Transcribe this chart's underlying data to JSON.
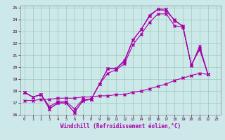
{
  "xlabel": "Windchill (Refroidissement éolien,°C)",
  "bg_color": "#cce8e8",
  "grid_color": "#99ccbb",
  "line_color": "#aa00aa",
  "xlim": [
    -0.5,
    23.5
  ],
  "ylim": [
    16,
    25.2
  ],
  "l1x": [
    0,
    1,
    2,
    3,
    4,
    5,
    6,
    7,
    8,
    9,
    10,
    11,
    12,
    13,
    14,
    15,
    16,
    17,
    18,
    19,
    20,
    21,
    22
  ],
  "l1y": [
    17.9,
    17.5,
    17.7,
    16.5,
    17.0,
    17.0,
    16.2,
    17.2,
    17.3,
    18.6,
    19.9,
    19.9,
    20.5,
    22.3,
    23.2,
    24.4,
    24.9,
    24.9,
    23.9,
    23.5,
    20.1,
    21.8,
    19.4
  ],
  "l2x": [
    0,
    1,
    2,
    3,
    4,
    5,
    6,
    7,
    8,
    9,
    10,
    11,
    12,
    13,
    14,
    15,
    16,
    17,
    18,
    19,
    20,
    21,
    22
  ],
  "l2y": [
    17.9,
    17.5,
    17.7,
    16.7,
    17.1,
    17.1,
    16.5,
    17.3,
    17.3,
    18.6,
    19.9,
    19.9,
    20.6,
    22.3,
    23.2,
    24.3,
    24.9,
    24.7,
    24.0,
    23.4,
    20.2,
    21.6,
    19.4
  ],
  "l3x": [
    0,
    1,
    2,
    3,
    4,
    5,
    6,
    7,
    8,
    9,
    10,
    11,
    12,
    13,
    14,
    15,
    16,
    17,
    18,
    19,
    20,
    21,
    22
  ],
  "l3y": [
    17.9,
    17.5,
    17.7,
    16.5,
    17.0,
    17.0,
    16.2,
    17.2,
    17.3,
    18.6,
    19.5,
    19.8,
    20.3,
    21.9,
    22.8,
    23.8,
    24.5,
    24.5,
    23.5,
    23.4,
    20.2,
    21.5,
    19.4
  ],
  "l4x": [
    0,
    1,
    2,
    3,
    4,
    5,
    6,
    7,
    8,
    9,
    10,
    11,
    12,
    13,
    14,
    15,
    16,
    17,
    18,
    19,
    20,
    21,
    22
  ],
  "l4y": [
    17.2,
    17.2,
    17.3,
    17.3,
    17.4,
    17.4,
    17.4,
    17.5,
    17.5,
    17.6,
    17.6,
    17.7,
    17.7,
    17.9,
    18.0,
    18.2,
    18.4,
    18.6,
    18.9,
    19.1,
    19.3,
    19.5,
    19.4
  ]
}
